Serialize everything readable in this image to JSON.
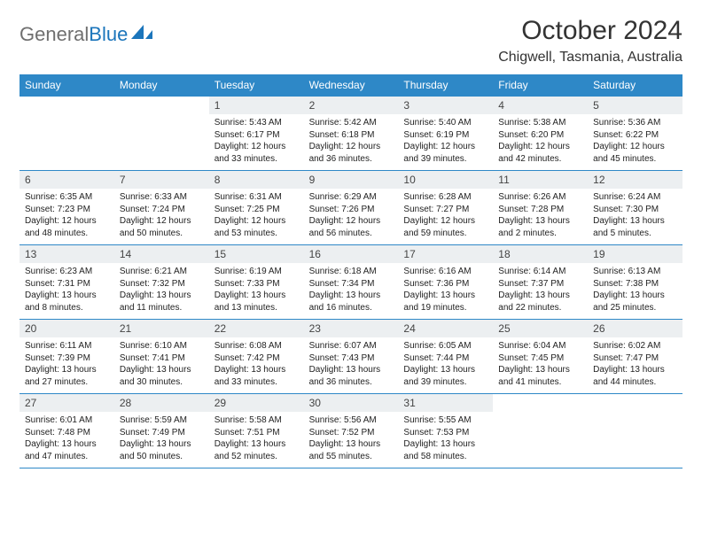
{
  "brand": {
    "word1": "General",
    "word2": "Blue"
  },
  "title": "October 2024",
  "location": "Chigwell, Tasmania, Australia",
  "dayNames": [
    "Sunday",
    "Monday",
    "Tuesday",
    "Wednesday",
    "Thursday",
    "Friday",
    "Saturday"
  ],
  "colors": {
    "header_bg": "#2e88c7",
    "header_text": "#ffffff",
    "daynum_bg": "#eceff1",
    "border": "#2e88c7",
    "logo_gray": "#6f6f6f",
    "logo_blue": "#1b75bb"
  },
  "weeks": [
    [
      {
        "n": "",
        "empty": true
      },
      {
        "n": "",
        "empty": true
      },
      {
        "n": "1",
        "sunrise": "Sunrise: 5:43 AM",
        "sunset": "Sunset: 6:17 PM",
        "daylight": "Daylight: 12 hours and 33 minutes."
      },
      {
        "n": "2",
        "sunrise": "Sunrise: 5:42 AM",
        "sunset": "Sunset: 6:18 PM",
        "daylight": "Daylight: 12 hours and 36 minutes."
      },
      {
        "n": "3",
        "sunrise": "Sunrise: 5:40 AM",
        "sunset": "Sunset: 6:19 PM",
        "daylight": "Daylight: 12 hours and 39 minutes."
      },
      {
        "n": "4",
        "sunrise": "Sunrise: 5:38 AM",
        "sunset": "Sunset: 6:20 PM",
        "daylight": "Daylight: 12 hours and 42 minutes."
      },
      {
        "n": "5",
        "sunrise": "Sunrise: 5:36 AM",
        "sunset": "Sunset: 6:22 PM",
        "daylight": "Daylight: 12 hours and 45 minutes."
      }
    ],
    [
      {
        "n": "6",
        "sunrise": "Sunrise: 6:35 AM",
        "sunset": "Sunset: 7:23 PM",
        "daylight": "Daylight: 12 hours and 48 minutes."
      },
      {
        "n": "7",
        "sunrise": "Sunrise: 6:33 AM",
        "sunset": "Sunset: 7:24 PM",
        "daylight": "Daylight: 12 hours and 50 minutes."
      },
      {
        "n": "8",
        "sunrise": "Sunrise: 6:31 AM",
        "sunset": "Sunset: 7:25 PM",
        "daylight": "Daylight: 12 hours and 53 minutes."
      },
      {
        "n": "9",
        "sunrise": "Sunrise: 6:29 AM",
        "sunset": "Sunset: 7:26 PM",
        "daylight": "Daylight: 12 hours and 56 minutes."
      },
      {
        "n": "10",
        "sunrise": "Sunrise: 6:28 AM",
        "sunset": "Sunset: 7:27 PM",
        "daylight": "Daylight: 12 hours and 59 minutes."
      },
      {
        "n": "11",
        "sunrise": "Sunrise: 6:26 AM",
        "sunset": "Sunset: 7:28 PM",
        "daylight": "Daylight: 13 hours and 2 minutes."
      },
      {
        "n": "12",
        "sunrise": "Sunrise: 6:24 AM",
        "sunset": "Sunset: 7:30 PM",
        "daylight": "Daylight: 13 hours and 5 minutes."
      }
    ],
    [
      {
        "n": "13",
        "sunrise": "Sunrise: 6:23 AM",
        "sunset": "Sunset: 7:31 PM",
        "daylight": "Daylight: 13 hours and 8 minutes."
      },
      {
        "n": "14",
        "sunrise": "Sunrise: 6:21 AM",
        "sunset": "Sunset: 7:32 PM",
        "daylight": "Daylight: 13 hours and 11 minutes."
      },
      {
        "n": "15",
        "sunrise": "Sunrise: 6:19 AM",
        "sunset": "Sunset: 7:33 PM",
        "daylight": "Daylight: 13 hours and 13 minutes."
      },
      {
        "n": "16",
        "sunrise": "Sunrise: 6:18 AM",
        "sunset": "Sunset: 7:34 PM",
        "daylight": "Daylight: 13 hours and 16 minutes."
      },
      {
        "n": "17",
        "sunrise": "Sunrise: 6:16 AM",
        "sunset": "Sunset: 7:36 PM",
        "daylight": "Daylight: 13 hours and 19 minutes."
      },
      {
        "n": "18",
        "sunrise": "Sunrise: 6:14 AM",
        "sunset": "Sunset: 7:37 PM",
        "daylight": "Daylight: 13 hours and 22 minutes."
      },
      {
        "n": "19",
        "sunrise": "Sunrise: 6:13 AM",
        "sunset": "Sunset: 7:38 PM",
        "daylight": "Daylight: 13 hours and 25 minutes."
      }
    ],
    [
      {
        "n": "20",
        "sunrise": "Sunrise: 6:11 AM",
        "sunset": "Sunset: 7:39 PM",
        "daylight": "Daylight: 13 hours and 27 minutes."
      },
      {
        "n": "21",
        "sunrise": "Sunrise: 6:10 AM",
        "sunset": "Sunset: 7:41 PM",
        "daylight": "Daylight: 13 hours and 30 minutes."
      },
      {
        "n": "22",
        "sunrise": "Sunrise: 6:08 AM",
        "sunset": "Sunset: 7:42 PM",
        "daylight": "Daylight: 13 hours and 33 minutes."
      },
      {
        "n": "23",
        "sunrise": "Sunrise: 6:07 AM",
        "sunset": "Sunset: 7:43 PM",
        "daylight": "Daylight: 13 hours and 36 minutes."
      },
      {
        "n": "24",
        "sunrise": "Sunrise: 6:05 AM",
        "sunset": "Sunset: 7:44 PM",
        "daylight": "Daylight: 13 hours and 39 minutes."
      },
      {
        "n": "25",
        "sunrise": "Sunrise: 6:04 AM",
        "sunset": "Sunset: 7:45 PM",
        "daylight": "Daylight: 13 hours and 41 minutes."
      },
      {
        "n": "26",
        "sunrise": "Sunrise: 6:02 AM",
        "sunset": "Sunset: 7:47 PM",
        "daylight": "Daylight: 13 hours and 44 minutes."
      }
    ],
    [
      {
        "n": "27",
        "sunrise": "Sunrise: 6:01 AM",
        "sunset": "Sunset: 7:48 PM",
        "daylight": "Daylight: 13 hours and 47 minutes."
      },
      {
        "n": "28",
        "sunrise": "Sunrise: 5:59 AM",
        "sunset": "Sunset: 7:49 PM",
        "daylight": "Daylight: 13 hours and 50 minutes."
      },
      {
        "n": "29",
        "sunrise": "Sunrise: 5:58 AM",
        "sunset": "Sunset: 7:51 PM",
        "daylight": "Daylight: 13 hours and 52 minutes."
      },
      {
        "n": "30",
        "sunrise": "Sunrise: 5:56 AM",
        "sunset": "Sunset: 7:52 PM",
        "daylight": "Daylight: 13 hours and 55 minutes."
      },
      {
        "n": "31",
        "sunrise": "Sunrise: 5:55 AM",
        "sunset": "Sunset: 7:53 PM",
        "daylight": "Daylight: 13 hours and 58 minutes."
      },
      {
        "n": "",
        "empty": true
      },
      {
        "n": "",
        "empty": true
      }
    ]
  ]
}
